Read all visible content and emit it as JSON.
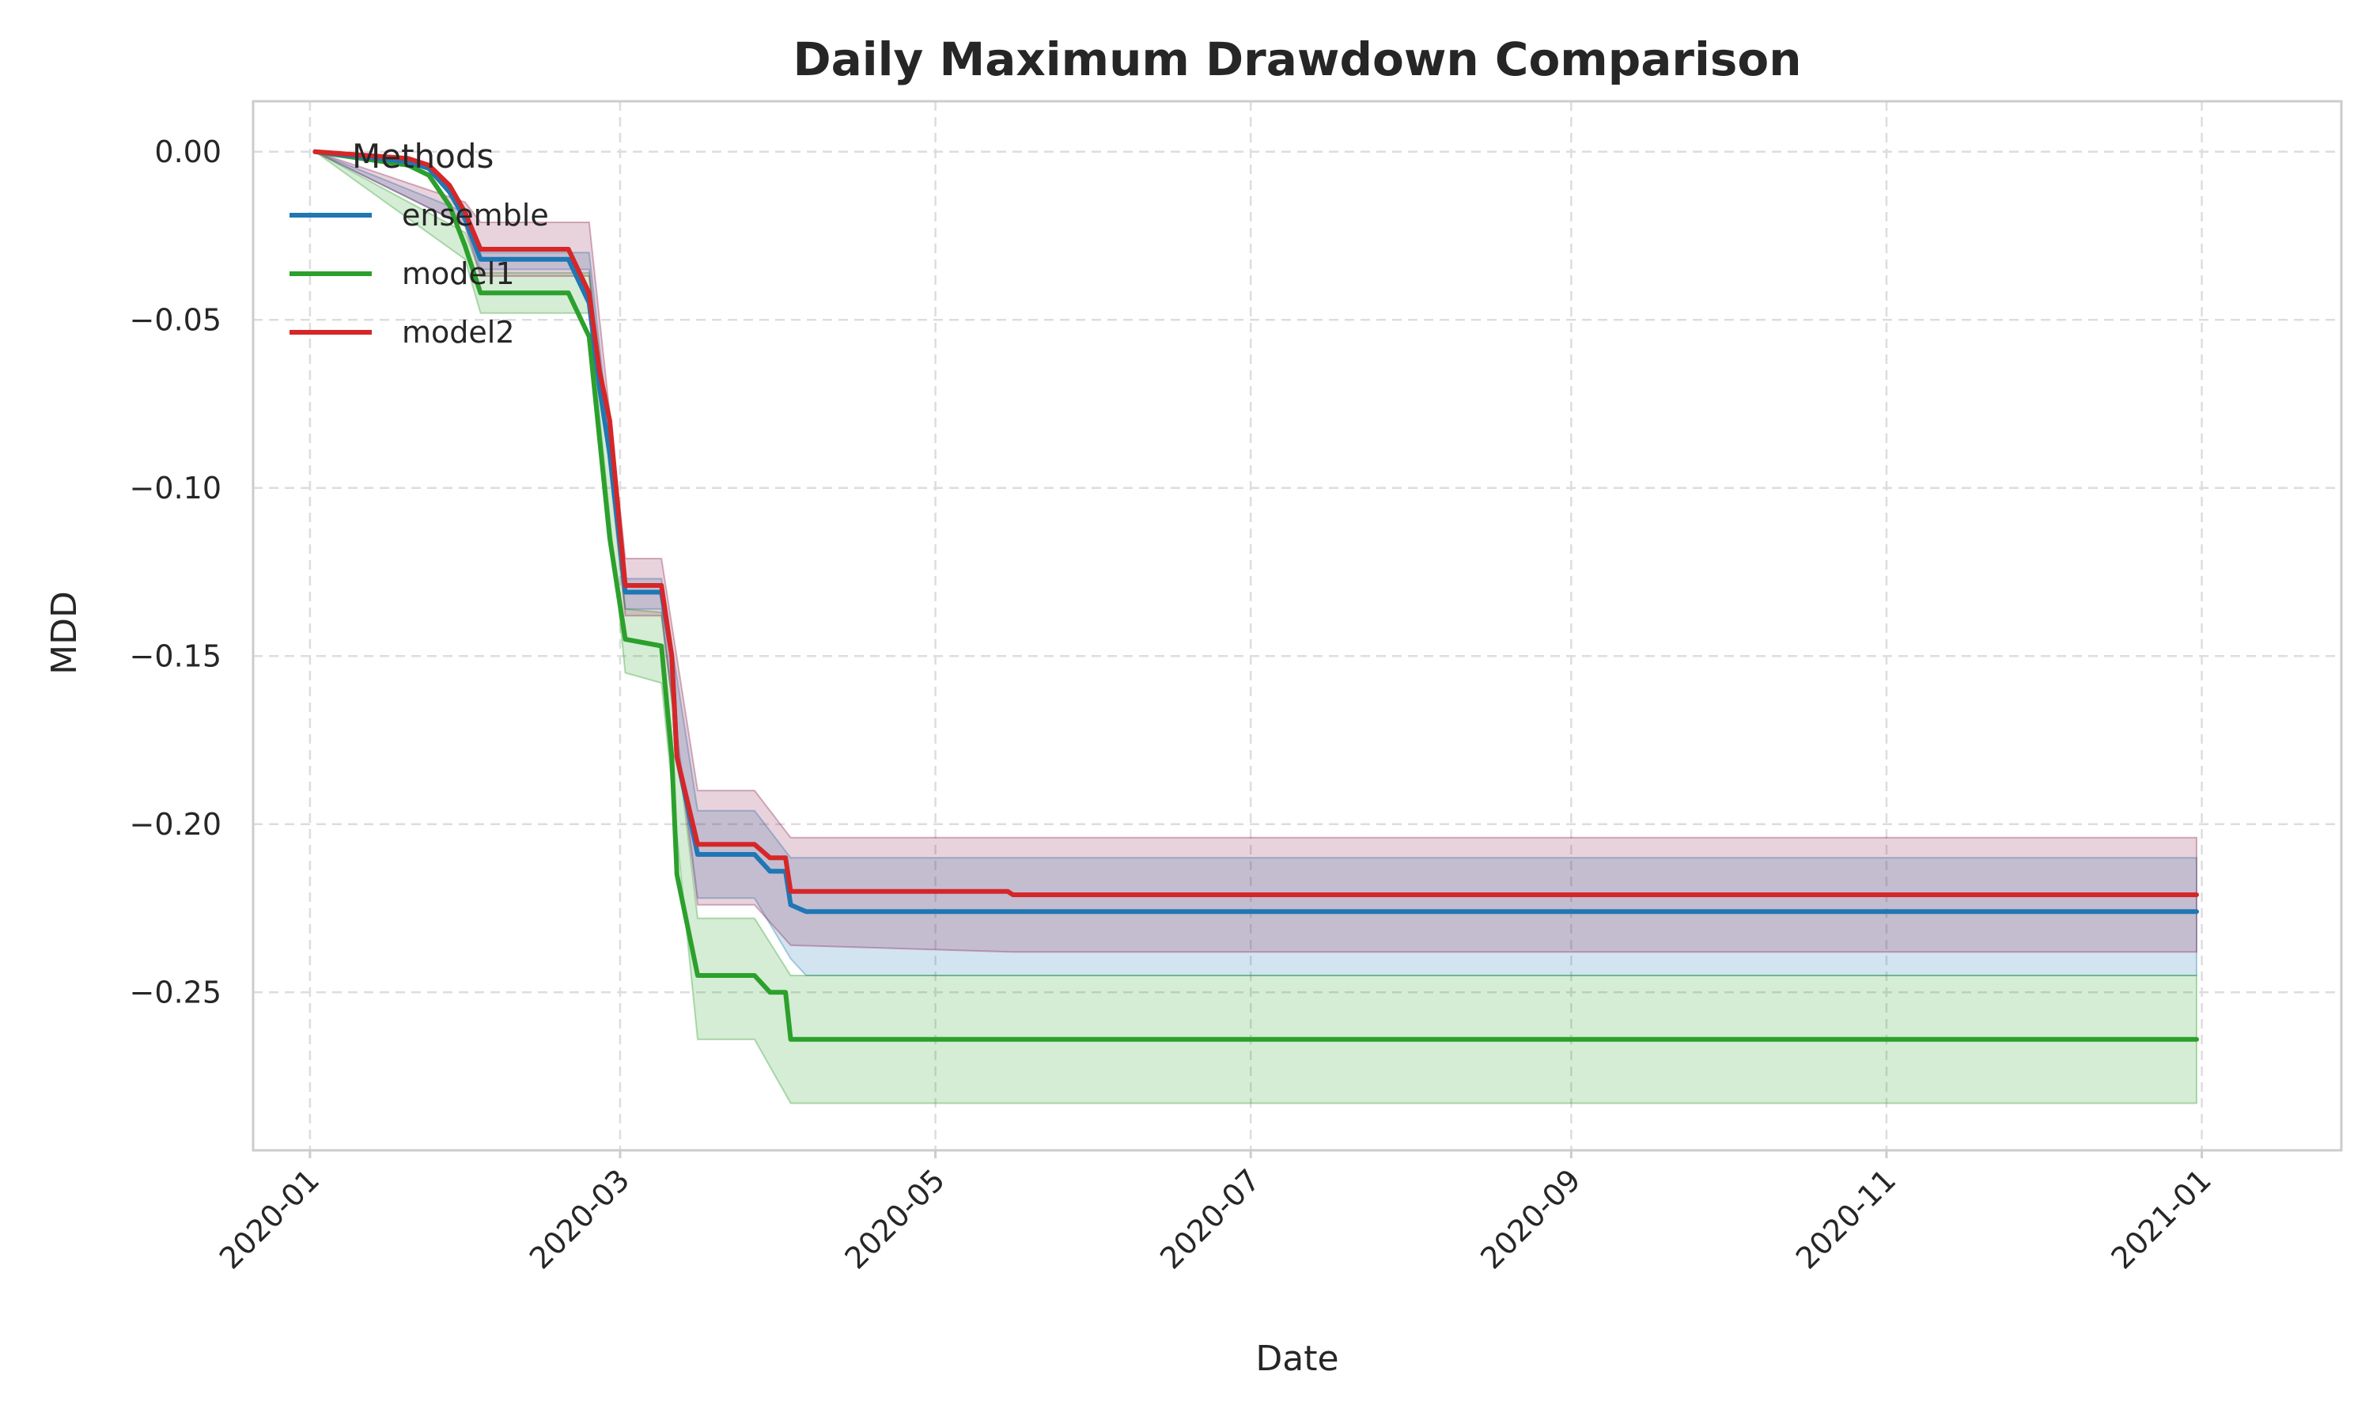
{
  "chart_data": {
    "type": "line",
    "title": "Daily Maximum Drawdown Comparison",
    "xlabel": "Date",
    "ylabel": "MDD",
    "x_range": [
      "2019-12-21",
      "2021-01-28"
    ],
    "ylim": [
      -0.297,
      0.015
    ],
    "x_ticks": [
      "2020-01-01",
      "2020-03-01",
      "2020-05-01",
      "2020-07-01",
      "2020-09-01",
      "2020-11-01",
      "2021-01-01"
    ],
    "x_tick_labels": [
      "2020-01",
      "2020-03",
      "2020-05",
      "2020-07",
      "2020-09",
      "2020-11",
      "2021-01"
    ],
    "y_ticks": [
      0.0,
      -0.05,
      -0.1,
      -0.15,
      -0.2,
      -0.25
    ],
    "y_tick_labels": [
      "0.00",
      "−0.05",
      "−0.10",
      "−0.15",
      "−0.20",
      "−0.25"
    ],
    "grid": true,
    "legend": {
      "title": "Methods",
      "placement": "top-left"
    },
    "series": [
      {
        "name": "ensemble",
        "color": "#1f77b4",
        "band_color": "#1f77b4",
        "points": [
          [
            "2020-01-02",
            0.0
          ],
          [
            "2020-01-20",
            -0.003
          ],
          [
            "2020-01-24",
            -0.005
          ],
          [
            "2020-01-28",
            -0.012
          ],
          [
            "2020-01-31",
            -0.02
          ],
          [
            "2020-02-03",
            -0.032
          ],
          [
            "2020-02-20",
            -0.032
          ],
          [
            "2020-02-24",
            -0.045
          ],
          [
            "2020-02-26",
            -0.07
          ],
          [
            "2020-02-28",
            -0.09
          ],
          [
            "2020-03-02",
            -0.131
          ],
          [
            "2020-03-09",
            -0.131
          ],
          [
            "2020-03-11",
            -0.15
          ],
          [
            "2020-03-12",
            -0.18
          ],
          [
            "2020-03-16",
            -0.209
          ],
          [
            "2020-03-27",
            -0.209
          ],
          [
            "2020-03-30",
            -0.214
          ],
          [
            "2020-04-02",
            -0.214
          ],
          [
            "2020-04-03",
            -0.224
          ],
          [
            "2020-04-06",
            -0.226
          ],
          [
            "2020-12-31",
            -0.226
          ]
        ],
        "band": [
          [
            "2020-01-02",
            0.0,
            0.0
          ],
          [
            "2020-01-31",
            -0.018,
            -0.022
          ],
          [
            "2020-02-03",
            -0.03,
            -0.035
          ],
          [
            "2020-02-24",
            -0.03,
            -0.035
          ],
          [
            "2020-03-02",
            -0.127,
            -0.136
          ],
          [
            "2020-03-09",
            -0.127,
            -0.136
          ],
          [
            "2020-03-16",
            -0.196,
            -0.222
          ],
          [
            "2020-03-27",
            -0.196,
            -0.222
          ],
          [
            "2020-04-03",
            -0.21,
            -0.24
          ],
          [
            "2020-04-06",
            -0.21,
            -0.245
          ],
          [
            "2020-12-31",
            -0.21,
            -0.245
          ]
        ]
      },
      {
        "name": "model1",
        "color": "#2ca02c",
        "band_color": "#2ca02c",
        "points": [
          [
            "2020-01-02",
            0.0
          ],
          [
            "2020-01-20",
            -0.004
          ],
          [
            "2020-01-24",
            -0.007
          ],
          [
            "2020-01-28",
            -0.016
          ],
          [
            "2020-01-31",
            -0.028
          ],
          [
            "2020-02-03",
            -0.042
          ],
          [
            "2020-02-20",
            -0.042
          ],
          [
            "2020-02-24",
            -0.055
          ],
          [
            "2020-02-26",
            -0.085
          ],
          [
            "2020-02-28",
            -0.115
          ],
          [
            "2020-03-02",
            -0.145
          ],
          [
            "2020-03-09",
            -0.147
          ],
          [
            "2020-03-11",
            -0.18
          ],
          [
            "2020-03-12",
            -0.215
          ],
          [
            "2020-03-16",
            -0.245
          ],
          [
            "2020-03-27",
            -0.245
          ],
          [
            "2020-03-30",
            -0.25
          ],
          [
            "2020-04-02",
            -0.25
          ],
          [
            "2020-04-03",
            -0.264
          ],
          [
            "2020-12-31",
            -0.264
          ]
        ],
        "band": [
          [
            "2020-01-02",
            0.0,
            0.0
          ],
          [
            "2020-01-31",
            -0.024,
            -0.032
          ],
          [
            "2020-02-03",
            -0.036,
            -0.048
          ],
          [
            "2020-02-24",
            -0.036,
            -0.048
          ],
          [
            "2020-03-02",
            -0.136,
            -0.155
          ],
          [
            "2020-03-09",
            -0.137,
            -0.158
          ],
          [
            "2020-03-16",
            -0.228,
            -0.264
          ],
          [
            "2020-03-27",
            -0.228,
            -0.264
          ],
          [
            "2020-04-03",
            -0.245,
            -0.283
          ],
          [
            "2020-12-31",
            -0.245,
            -0.283
          ]
        ]
      },
      {
        "name": "model2",
        "color": "#d62728",
        "band_color": "#8b2252",
        "points": [
          [
            "2020-01-02",
            0.0
          ],
          [
            "2020-01-20",
            -0.002
          ],
          [
            "2020-01-24",
            -0.004
          ],
          [
            "2020-01-28",
            -0.01
          ],
          [
            "2020-01-31",
            -0.018
          ],
          [
            "2020-02-03",
            -0.029
          ],
          [
            "2020-02-20",
            -0.029
          ],
          [
            "2020-02-24",
            -0.042
          ],
          [
            "2020-02-26",
            -0.065
          ],
          [
            "2020-02-28",
            -0.08
          ],
          [
            "2020-03-02",
            -0.129
          ],
          [
            "2020-03-09",
            -0.129
          ],
          [
            "2020-03-11",
            -0.15
          ],
          [
            "2020-03-12",
            -0.18
          ],
          [
            "2020-03-16",
            -0.206
          ],
          [
            "2020-03-27",
            -0.206
          ],
          [
            "2020-03-30",
            -0.21
          ],
          [
            "2020-04-02",
            -0.21
          ],
          [
            "2020-04-03",
            -0.22
          ],
          [
            "2020-05-15",
            -0.22
          ],
          [
            "2020-05-16",
            -0.221
          ],
          [
            "2020-12-31",
            -0.221
          ]
        ],
        "band": [
          [
            "2020-01-02",
            0.0,
            0.0
          ],
          [
            "2020-01-31",
            -0.015,
            -0.022
          ],
          [
            "2020-02-03",
            -0.021,
            -0.037
          ],
          [
            "2020-02-24",
            -0.021,
            -0.037
          ],
          [
            "2020-03-02",
            -0.121,
            -0.138
          ],
          [
            "2020-03-09",
            -0.121,
            -0.138
          ],
          [
            "2020-03-16",
            -0.19,
            -0.224
          ],
          [
            "2020-03-27",
            -0.19,
            -0.224
          ],
          [
            "2020-04-03",
            -0.204,
            -0.236
          ],
          [
            "2020-05-16",
            -0.204,
            -0.238
          ],
          [
            "2020-12-31",
            -0.204,
            -0.238
          ]
        ]
      }
    ]
  }
}
